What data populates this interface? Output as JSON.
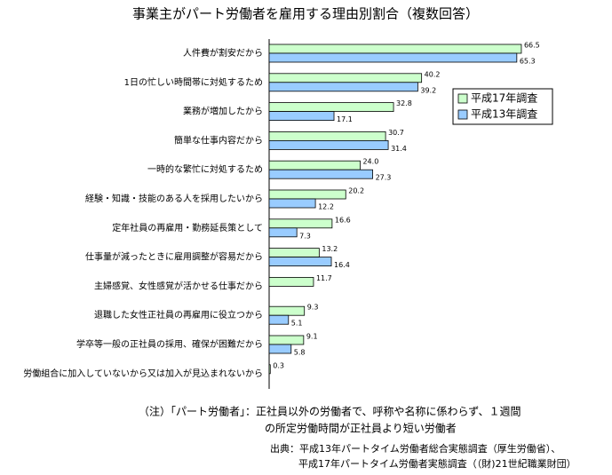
{
  "chart_data": {
    "type": "hbar",
    "title": "事業主がパート労働者を雇用する理由別割合（複数回答）",
    "categories": [
      "人件費が割安だから",
      "1日の忙しい時間帯に対処するため",
      "業務が増加したから",
      "簡単な仕事内容だから",
      "一時的な繁忙に対処するため",
      "経験・知識・技能のある人を採用したいから",
      "定年社員の再雇用・勤務延長策として",
      "仕事量が減ったときに雇用調整が容易だから",
      "主婦感覚、女性感覚が活かせる仕事だから",
      "退職した女性正社員の再雇用に役立つから",
      "学卒等一般の正社員の採用、確保が困難だから",
      "労働組合に加入していないから又は加入が見込まれないから"
    ],
    "series": [
      {
        "name": "平成17年調査",
        "color": "#ccffcc",
        "values": [
          66.5,
          40.2,
          32.8,
          30.7,
          24.0,
          20.2,
          16.6,
          13.2,
          11.7,
          9.3,
          9.1,
          0.3
        ],
        "value_labels": [
          "66.5",
          "40.2",
          "32.8",
          "30.7",
          "24.0",
          "20.2",
          "16.6",
          "13.2",
          "11.7",
          "9.3",
          "9.1",
          "0.3"
        ]
      },
      {
        "name": "平成13年調査",
        "color": "#99ccff",
        "values": [
          65.3,
          39.2,
          17.1,
          31.4,
          27.3,
          12.2,
          7.3,
          16.4,
          null,
          5.1,
          5.8,
          null
        ],
        "value_labels": [
          "65.3",
          "39.2",
          "17.1",
          "31.4",
          "27.3",
          "12.2",
          "7.3",
          "16.4",
          null,
          "5.1",
          "5.8",
          null
        ]
      }
    ],
    "notes": [
      "（注）「パート労働者」：正社員以外の労働者で、呼称や名称に係わらず、１週間",
      "の所定労働時間が正社員より短い労働者"
    ],
    "source": [
      "出典：平成13年パートタイム労働者総合実態調査（厚生労働省）、",
      "平成17年パートタイム労働者実態調査（（財)21世紀職業財団）"
    ]
  }
}
